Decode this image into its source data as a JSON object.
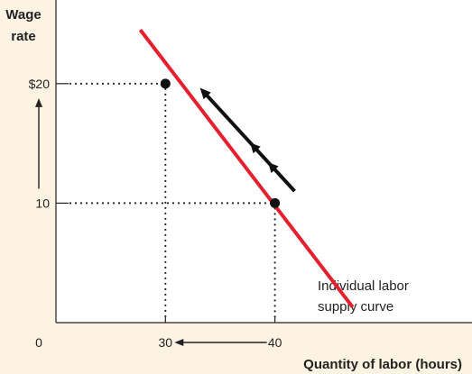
{
  "chart_data": {
    "type": "line",
    "title": "",
    "ylabel_lines": [
      "Wage",
      "rate"
    ],
    "xlabel": "Quantity of labor (hours)",
    "origin_label": "0",
    "xlim": [
      20,
      58
    ],
    "ylim": [
      0,
      27
    ],
    "y_ticks": [
      {
        "value": 20,
        "label": "$20"
      },
      {
        "value": 10,
        "label": "10"
      }
    ],
    "x_ticks": [
      {
        "value": 30,
        "label": "30"
      },
      {
        "value": 40,
        "label": "40"
      }
    ],
    "series": [
      {
        "name": "Individual labor supply curve",
        "points": [
          {
            "x": 27.7,
            "y": 24.5
          },
          {
            "x": 47.1,
            "y": 1.3
          }
        ]
      }
    ],
    "points": [
      {
        "x": 30,
        "y": 20
      },
      {
        "x": 40,
        "y": 10
      }
    ],
    "curve_label_lines": [
      "Individual labor",
      "supply curve"
    ],
    "annotations": {
      "movement_arrow": {
        "from": {
          "x": 41.8,
          "y": 11.0
        },
        "to": {
          "x": 33.6,
          "y": 19.2
        }
      },
      "y_axis_arrow": {
        "from": 10,
        "to": 20
      },
      "x_axis_arrow": {
        "from": 40,
        "to": 30
      }
    },
    "grid": false,
    "colors": {
      "curve": "#e4202f",
      "background": "#fdf3e3",
      "plot": "#ffffff",
      "ink": "#222222"
    }
  }
}
